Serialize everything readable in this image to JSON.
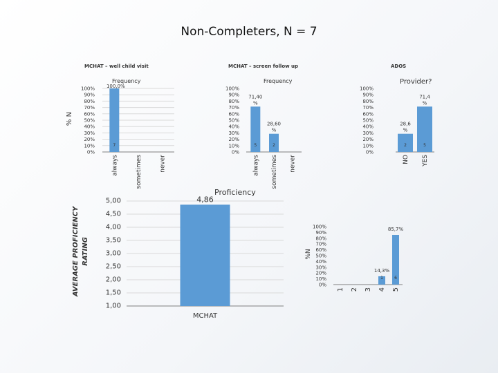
{
  "page": {
    "title": "Non-Completers, N = 7"
  },
  "sections": {
    "wellchild": "MCHAT – well child visit",
    "screen": "MCHAT – screen follow up",
    "ados": "ADOS"
  },
  "colors": {
    "bar": "#5b9bd5",
    "grid": "#d9d9d9",
    "axis": "#7f7f7f"
  },
  "chart_data": [
    {
      "id": "c1",
      "type": "bar",
      "title": "Frequency",
      "ylabel": "% N",
      "categories": [
        "always",
        "sometimes",
        "never"
      ],
      "values": [
        100,
        0,
        0
      ],
      "value_labels": [
        "100,0%",
        "",
        ""
      ],
      "count_labels": [
        "7",
        "",
        ""
      ],
      "ylim": [
        0,
        100
      ],
      "yticks": [
        "0%",
        "10%",
        "20%",
        "30%",
        "40%",
        "50%",
        "60%",
        "70%",
        "80%",
        "90%",
        "100%"
      ],
      "grid": true
    },
    {
      "id": "c2",
      "type": "bar",
      "title": "Frequency",
      "categories": [
        "always",
        "sometimes",
        "never"
      ],
      "values": [
        71.4,
        28.6,
        0
      ],
      "value_labels": [
        "71,40 %",
        "28,60 %",
        ""
      ],
      "count_labels": [
        "5",
        "2",
        ""
      ],
      "ylim": [
        0,
        100
      ],
      "yticks": [
        "0%",
        "10%",
        "20%",
        "30%",
        "40%",
        "50%",
        "60%",
        "70%",
        "80%",
        "90%",
        "100%"
      ],
      "grid": false
    },
    {
      "id": "c3",
      "type": "bar",
      "title": "Provider?",
      "categories": [
        "NO",
        "YES"
      ],
      "values": [
        28.6,
        71.4
      ],
      "value_labels": [
        "28,6 %",
        "71,4 %"
      ],
      "count_labels": [
        "2",
        "5"
      ],
      "ylim": [
        0,
        100
      ],
      "yticks": [
        "0%",
        "10%",
        "20%",
        "30%",
        "40%",
        "50%",
        "60%",
        "70%",
        "80%",
        "90%",
        "100%"
      ],
      "grid": false
    },
    {
      "id": "c4",
      "type": "bar",
      "title": "Proficiency",
      "ylabel": "AVERAGE PROFICIENCY RATING",
      "categories": [
        "MCHAT"
      ],
      "values": [
        4.86
      ],
      "value_labels": [
        "4,86"
      ],
      "ylim": [
        1,
        5
      ],
      "yticks": [
        "1,00",
        "1,50",
        "2,00",
        "2,50",
        "3,00",
        "3,50",
        "4,00",
        "4,50",
        "5,00"
      ],
      "grid": true
    },
    {
      "id": "c5",
      "type": "bar",
      "ylabel": "%N",
      "categories": [
        "1",
        "2",
        "3",
        "4",
        "5"
      ],
      "values": [
        0,
        0,
        0,
        14.3,
        85.7
      ],
      "value_labels": [
        "",
        "",
        "",
        "14,3%",
        "85,7%"
      ],
      "count_labels": [
        "",
        "",
        "",
        "1",
        "6"
      ],
      "ylim": [
        0,
        100
      ],
      "yticks": [
        "0%",
        "10%",
        "20%",
        "30%",
        "40%",
        "50%",
        "60%",
        "70%",
        "80%",
        "90%",
        "100%"
      ],
      "grid": false
    }
  ]
}
